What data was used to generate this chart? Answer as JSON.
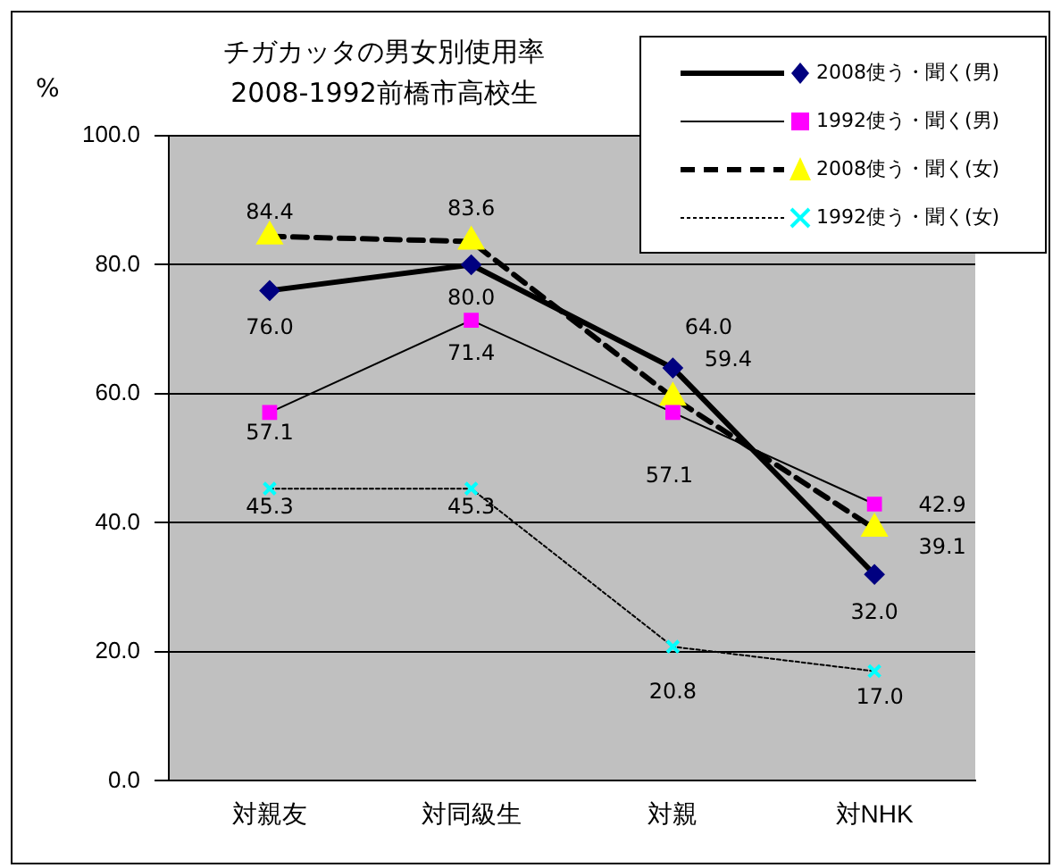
{
  "chart_data": {
    "type": "line",
    "title": "チガカッタの男女別使用率\n2008-1992前橋市高校生",
    "ylabel": "%",
    "categories": [
      "対親友",
      "対同級生",
      "対親",
      "対NHK"
    ],
    "series": [
      {
        "name": "2008使う・聞く(男)",
        "color": "#000080",
        "values": [
          76.0,
          80.0,
          64.0,
          32.0
        ],
        "value_labels": [
          "76.0",
          "80.0",
          "64.0",
          "32.0"
        ],
        "marker": "diamond",
        "line_style": "solid"
      },
      {
        "name": "1992使う・聞く(男)",
        "color": "#ff00ff",
        "values": [
          57.1,
          71.4,
          57.1,
          42.9
        ],
        "value_labels": [
          "57.1",
          "71.4",
          "57.1",
          "42.9"
        ],
        "marker": "square",
        "line_style": "solid"
      },
      {
        "name": "2008使う・聞く(女)",
        "color": "#ffff00",
        "values": [
          84.4,
          83.6,
          59.4,
          39.1
        ],
        "value_labels": [
          "84.4",
          "83.6",
          "59.4",
          "39.1"
        ],
        "marker": "triangle",
        "line_style": "dashed"
      },
      {
        "name": "1992使う・聞く(女)",
        "color": "#00ffff",
        "values": [
          45.3,
          45.3,
          20.8,
          17.0
        ],
        "value_labels": [
          "45.3",
          "45.3",
          "20.8",
          "17.0"
        ],
        "marker": "cross",
        "line_style": "dotted"
      }
    ],
    "ylim": [
      0,
      100
    ],
    "yticks": [
      {
        "value": 0,
        "label": "0.0"
      },
      {
        "value": 20,
        "label": "20.0"
      },
      {
        "value": 40,
        "label": "40.0"
      },
      {
        "value": 60,
        "label": "60.0"
      },
      {
        "value": 80,
        "label": "80.0"
      },
      {
        "value": 100,
        "label": "100.0"
      }
    ],
    "grid": "y",
    "legend": "top right"
  }
}
